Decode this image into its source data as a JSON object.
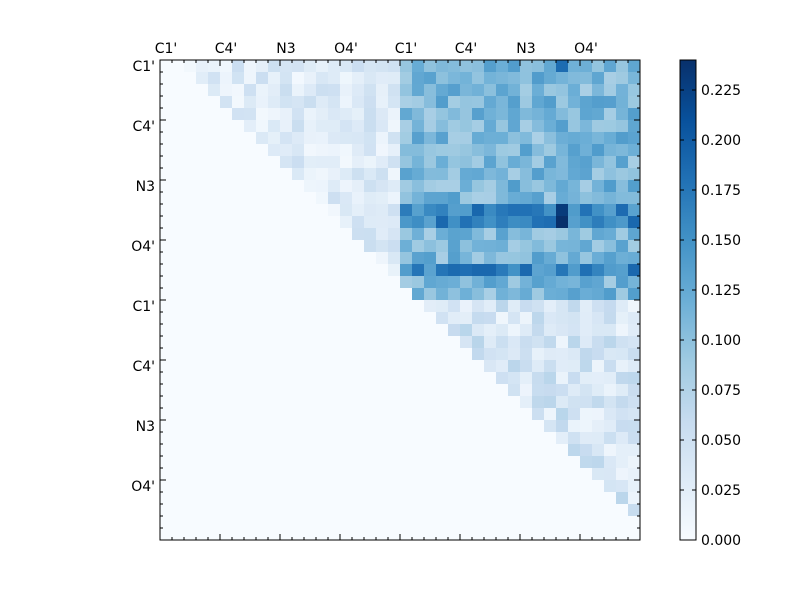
{
  "chart_data": {
    "type": "heatmap",
    "title": "",
    "colormap": "Blues",
    "colormap_stops": [
      "#f7fbff",
      "#deebf7",
      "#c6dbef",
      "#9ecae1",
      "#6baed6",
      "#4292c6",
      "#2171b5",
      "#08519c",
      "#08306b"
    ],
    "value_range": [
      0.0,
      0.24
    ],
    "n_rows": 40,
    "n_cols": 40,
    "x_tick_labels": [
      "C1'",
      "C4'",
      "N3",
      "O4'",
      "C1'",
      "C4'",
      "N3",
      "O4'"
    ],
    "y_tick_labels": [
      "C1'",
      "C4'",
      "N3",
      "O4'",
      "C1'",
      "C4'",
      "N3",
      "O4'"
    ],
    "colorbar_ticks": [
      0.0,
      0.025,
      0.05,
      0.075,
      0.1,
      0.125,
      0.15,
      0.175,
      0.2,
      0.225
    ],
    "colorbar_tick_labels": [
      "0.000",
      "0.025",
      "0.050",
      "0.075",
      "0.100",
      "0.125",
      "0.150",
      "0.175",
      "0.200",
      "0.225"
    ],
    "blocks_note_values": {
      "upper_left_strand": 0.03,
      "off_diagonal_block": 0.11,
      "lower_right_strand": 0.04,
      "hot_row": 0.16,
      "hot_cell_max": 0.24
    }
  }
}
